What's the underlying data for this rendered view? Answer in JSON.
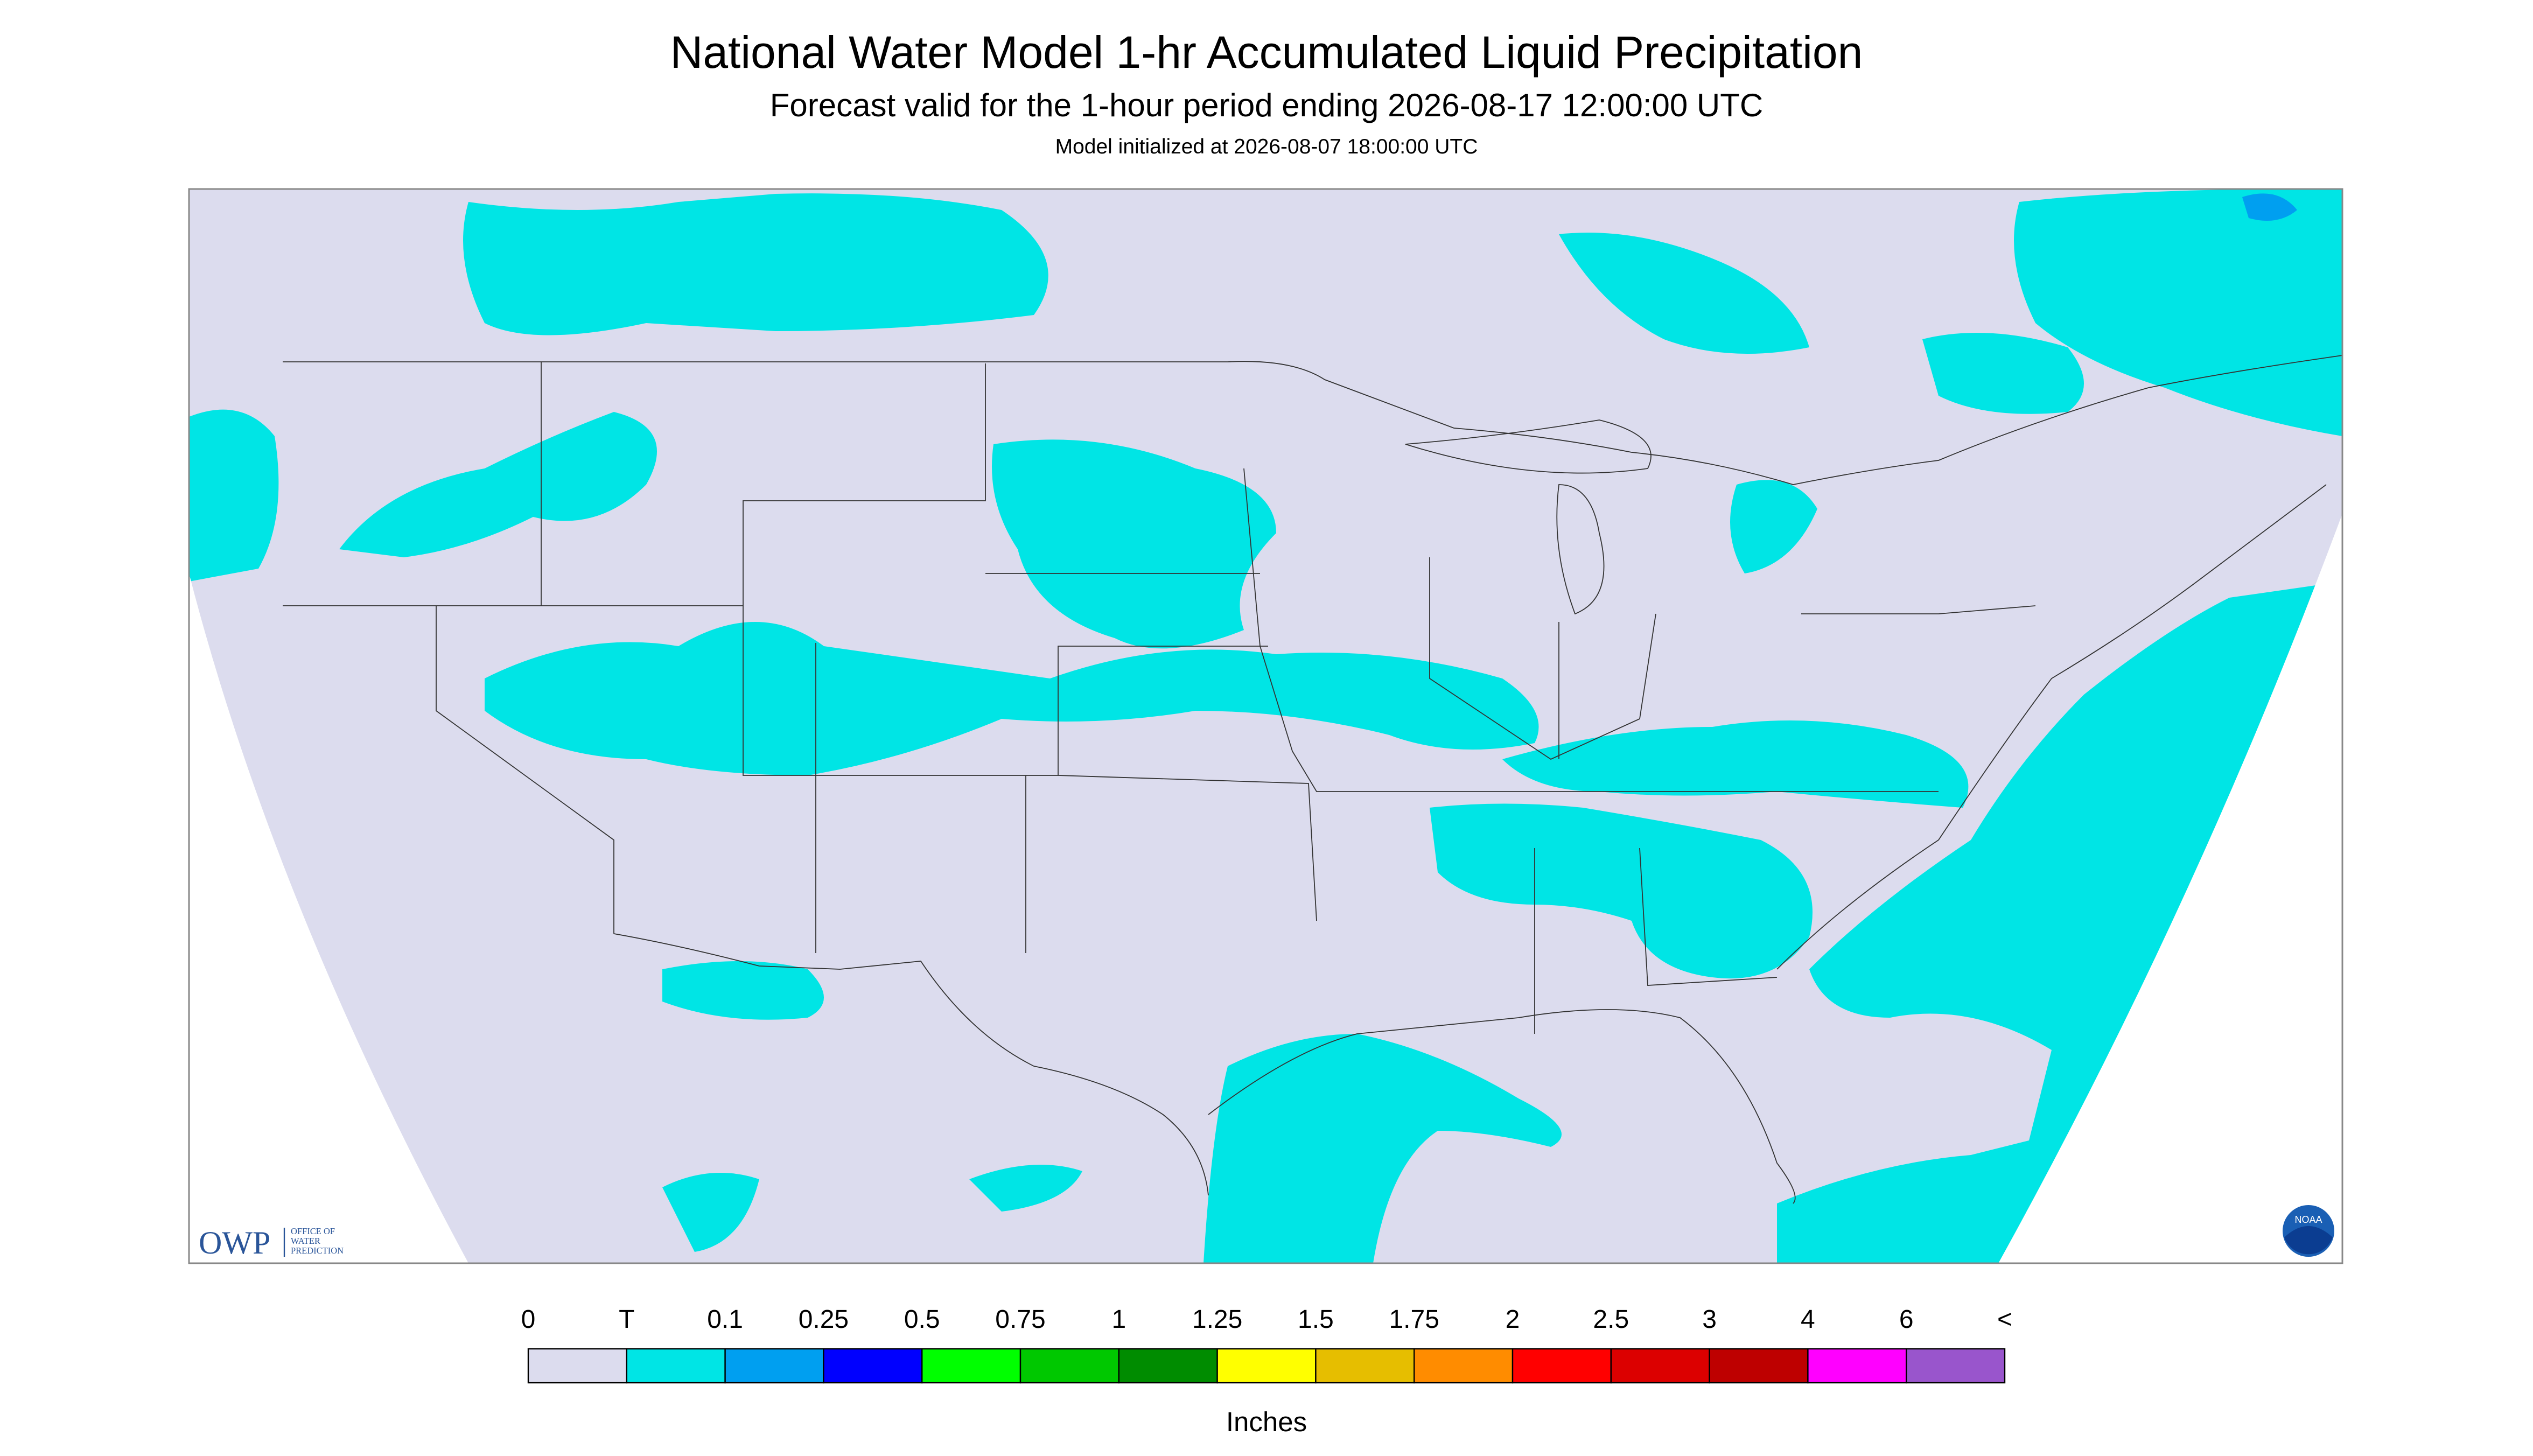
{
  "header": {
    "title": "National Water Model 1-hr Accumulated Liquid Precipitation",
    "subtitle": "Forecast valid for the 1-hour period ending 2026-08-17 12:00:00 UTC",
    "init": "Model initialized at 2026-08-07 18:00:00 UTC"
  },
  "logos": {
    "owp": "OWP",
    "owp_lines": [
      "OFFICE OF",
      "WATER",
      "PREDICTION"
    ],
    "noaa": "NOAA"
  },
  "legend": {
    "labels": [
      "0",
      "T",
      "0.1",
      "0.25",
      "0.5",
      "0.75",
      "1",
      "1.25",
      "1.5",
      "1.75",
      "2",
      "2.5",
      "3",
      "4",
      "6",
      "<"
    ],
    "colors": [
      "#dcdcee",
      "#00e5e5",
      "#009ff0",
      "#0000ff",
      "#00ff00",
      "#00c800",
      "#008c00",
      "#ffff00",
      "#e6be00",
      "#ff8c00",
      "#ff0000",
      "#dc0000",
      "#be0000",
      "#ff00ff",
      "#9955cc"
    ],
    "units": "Inches"
  }
}
